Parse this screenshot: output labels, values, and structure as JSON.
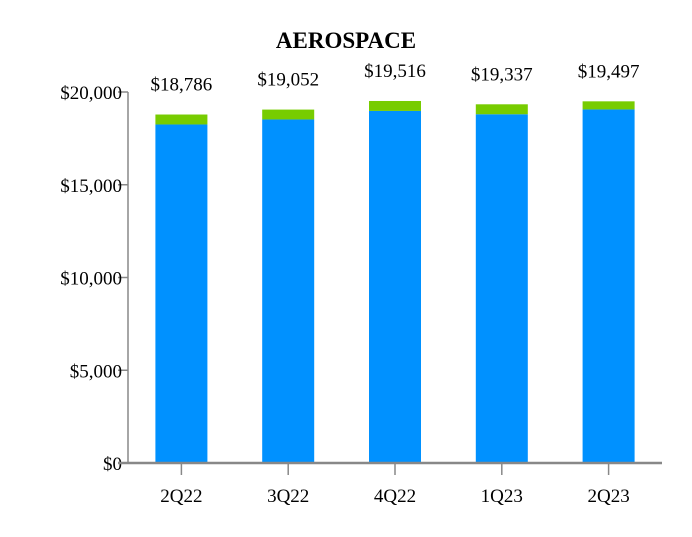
{
  "chart_data": {
    "type": "bar",
    "stacked": true,
    "title": "AEROSPACE",
    "xlabel": "",
    "ylabel": "",
    "categories": [
      "2Q22",
      "3Q22",
      "4Q22",
      "1Q23",
      "2Q23"
    ],
    "series": [
      {
        "values": [
          18250,
          18520,
          18980,
          18800,
          19060
        ],
        "color": "#0091FF"
      },
      {
        "values": [
          536,
          532,
          536,
          537,
          437
        ],
        "color": "#77CC00"
      }
    ],
    "totals": [
      18786,
      19052,
      19516,
      19337,
      19497
    ],
    "total_labels": [
      "$18,786",
      "$19,052",
      "$19,516",
      "$19,337",
      "$19,497"
    ],
    "ylim": [
      0,
      20000
    ],
    "yticks": [
      0,
      5000,
      10000,
      15000,
      20000
    ],
    "ytick_labels": [
      "$0",
      "$5,000",
      "$10,000",
      "$15,000",
      "$20,000"
    ],
    "grid": false,
    "legend": "none",
    "axis_color": "#888888"
  }
}
